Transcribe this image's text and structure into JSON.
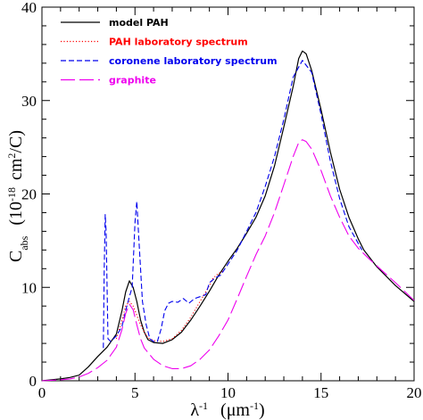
{
  "chart_data": {
    "type": "line",
    "xlabel": {
      "base": "λ",
      "base_sup": "-1",
      "unit": "(μm",
      "unit_sup": "-1",
      "unit_close": ")"
    },
    "ylabel": {
      "base": "C",
      "base_sub": "abs",
      "unit_open": "(10",
      "unit_exp": "-18",
      "unit": "cm",
      "unit_sup": "2",
      "unit_close": "/C)"
    },
    "xlim": [
      0,
      20
    ],
    "ylim": [
      0,
      40
    ],
    "xticks": [
      "0",
      "5",
      "10",
      "15",
      "20"
    ],
    "yticks": [
      "0",
      "10",
      "20",
      "30",
      "40"
    ],
    "legend_position": "top-left",
    "series": [
      {
        "name": "model PAH",
        "color": "#000000",
        "dash": "solid",
        "x": [
          0,
          1,
          1.5,
          2,
          2.5,
          3,
          3.5,
          4,
          4.3,
          4.5,
          4.7,
          4.9,
          5.1,
          5.3,
          5.5,
          5.7,
          6,
          6.5,
          7,
          7.5,
          8,
          8.5,
          9,
          9.5,
          10,
          10.5,
          11,
          11.5,
          12,
          12.5,
          13,
          13.5,
          13.8,
          14,
          14.2,
          14.5,
          15,
          15.5,
          16,
          16.5,
          17,
          17.3,
          18,
          19,
          20
        ],
        "y": [
          0,
          0.2,
          0.35,
          0.6,
          1.5,
          2.6,
          3.6,
          5,
          7.5,
          9.5,
          10.7,
          10,
          8.5,
          6.5,
          5.2,
          4.4,
          4.1,
          4,
          4.4,
          5.2,
          6.5,
          8,
          9.6,
          11.3,
          12.8,
          14.2,
          15.8,
          17.5,
          19.8,
          23,
          27.2,
          31.5,
          34.5,
          35.3,
          35,
          33.2,
          29,
          24.5,
          20.5,
          17.5,
          15.2,
          14,
          12.2,
          10.2,
          8.5
        ]
      },
      {
        "name": "PAH laboratory spectrum",
        "color": "#ff0000",
        "dash": "dotted",
        "x": [
          4,
          4.3,
          4.5,
          4.7,
          4.9,
          5.1,
          5.3,
          5.5,
          5.7,
          6,
          6.5,
          7,
          7.5,
          8,
          8.5,
          9,
          9.2,
          9.5,
          9.8
        ],
        "y": [
          4.5,
          6.5,
          8,
          8.5,
          8,
          7,
          6,
          5.2,
          4.6,
          4.3,
          4.2,
          4.5,
          5.4,
          6.8,
          8.5,
          10.2,
          11,
          11.5,
          11.8
        ]
      },
      {
        "name": "coronene laboratory spectrum",
        "color": "#0000ee",
        "dash": "dashed",
        "x": [
          3.3,
          3.35,
          3.4,
          3.45,
          3.55,
          3.7,
          4,
          4.3,
          4.5,
          4.7,
          4.85,
          5,
          5.1,
          5.2,
          5.4,
          5.6,
          5.8,
          6,
          6.2,
          6.4,
          6.6,
          6.8,
          7,
          7.3,
          7.6,
          7.9,
          8.2,
          8.5,
          8.8,
          9,
          9.3,
          9.6,
          10,
          10.5,
          11,
          11.5,
          12,
          12.5,
          13,
          13.5,
          14,
          14.5,
          15,
          15.5,
          16,
          16.5,
          17.2
        ],
        "y": [
          3.5,
          12,
          17.8,
          16,
          4.5,
          4.2,
          4.8,
          5.8,
          7.5,
          9,
          10,
          17,
          19.2,
          15.5,
          8.5,
          6,
          4.5,
          4.2,
          4.2,
          5.5,
          7.5,
          8.3,
          8.5,
          8.4,
          8.8,
          8.3,
          8.8,
          9,
          9.2,
          10.5,
          11,
          11.3,
          12.5,
          14,
          16,
          18,
          20.8,
          24,
          28,
          32.5,
          34.3,
          33,
          28.5,
          23.5,
          19.5,
          16.5,
          14
        ]
      },
      {
        "name": "graphite",
        "color": "#ee00ee",
        "dash": "longdash",
        "x": [
          0,
          1,
          1.5,
          2,
          2.5,
          3,
          3.5,
          4,
          4.3,
          4.5,
          4.7,
          4.9,
          5.1,
          5.3,
          5.5,
          6,
          6.5,
          7,
          7.5,
          8,
          8.5,
          9,
          9.5,
          10,
          10.5,
          11,
          11.5,
          12,
          12.5,
          13,
          13.5,
          13.8,
          14,
          14.2,
          14.5,
          15,
          15.5,
          16,
          16.5,
          17,
          17.5,
          18,
          19,
          20
        ],
        "y": [
          0,
          0.1,
          0.2,
          0.4,
          0.8,
          1.4,
          2.2,
          3.6,
          5.5,
          7.2,
          8.2,
          7.6,
          6,
          4.5,
          3.5,
          2.3,
          1.6,
          1.3,
          1.3,
          1.6,
          2.3,
          3.3,
          4.8,
          6.5,
          8.8,
          11.2,
          13.5,
          15.5,
          18,
          21,
          24,
          25.5,
          25.8,
          25.6,
          24.8,
          22.5,
          19.8,
          17.5,
          15.5,
          14.2,
          13.2,
          12.3,
          10.5,
          8.6
        ]
      }
    ]
  }
}
